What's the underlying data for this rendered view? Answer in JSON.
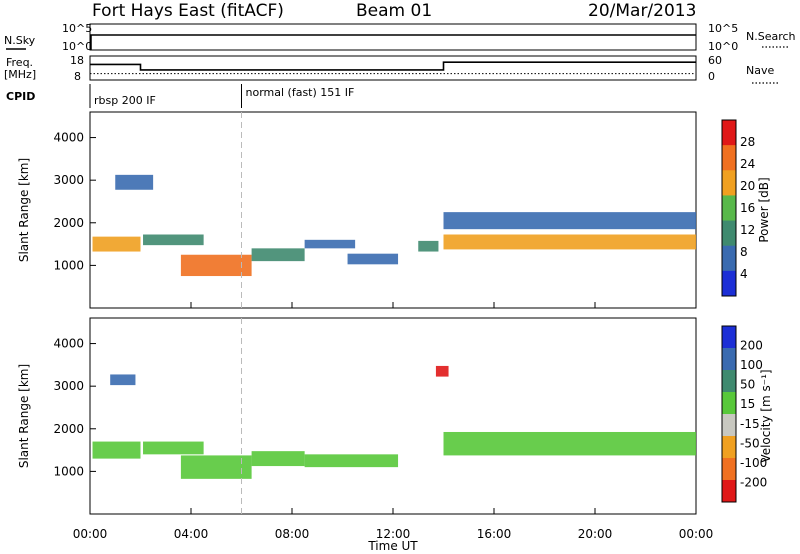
{
  "header": {
    "station": "Fort Hays East (fitACF)",
    "beam": "Beam 01",
    "date": "20/Mar/2013"
  },
  "status_panels": {
    "nsky_label": "N.Sky",
    "nsky_ticks": [
      "10^5",
      "10^0"
    ],
    "nsearch_label": "N.Search",
    "nsearch_ticks": [
      "10^5",
      "10^0"
    ],
    "freq_label": "Freq.",
    "freq_unit": "[MHz]",
    "freq_ticks": [
      "18",
      "8"
    ],
    "nave_label": "Nave",
    "nave_ticks": [
      "60",
      "0"
    ],
    "cpid_label": "CPID",
    "cpid_modes": [
      {
        "name": "rbsp 200 IF",
        "start_hour": 0
      },
      {
        "name": "normal (fast) 151 IF",
        "start_hour": 6
      }
    ],
    "freq_mhz": [
      {
        "from_hour": 0,
        "to_hour": 2,
        "value": 14.5
      },
      {
        "from_hour": 2,
        "to_hour": 14,
        "value": 12.2
      },
      {
        "from_hour": 14,
        "to_hour": 24,
        "value": 15.4
      }
    ],
    "nave_level": 16
  },
  "x_axis": {
    "label": "Time UT",
    "ticks": [
      "00:00",
      "04:00",
      "08:00",
      "12:00",
      "16:00",
      "20:00",
      "00:00"
    ],
    "range_hours": [
      0,
      24
    ]
  },
  "chart_data": [
    {
      "type": "heatmap",
      "name": "power",
      "ylabel": "Slant Range [km]",
      "yticks": [
        "1000",
        "2000",
        "3000",
        "4000"
      ],
      "ylim": [
        0,
        4600
      ],
      "colorbar_label": "Power [dB]",
      "colorbar_ticks": [
        "4",
        "8",
        "12",
        "16",
        "20",
        "24",
        "28"
      ],
      "colorbar_range": [
        0,
        32
      ],
      "colors": [
        "#1c2fd6",
        "#3a6bb0",
        "#3f8a6f",
        "#58b84a",
        "#f0a020",
        "#f07020",
        "#e01818"
      ],
      "bands": [
        {
          "t0": 0.1,
          "t1": 2.0,
          "center_km": 1500,
          "width_km": 350,
          "value": 22
        },
        {
          "t0": 1.0,
          "t1": 2.5,
          "center_km": 2950,
          "width_km": 350,
          "value": 7
        },
        {
          "t0": 2.1,
          "t1": 4.5,
          "center_km": 1600,
          "width_km": 250,
          "value": 13
        },
        {
          "t0": 3.6,
          "t1": 6.4,
          "center_km": 1000,
          "width_km": 500,
          "value": 24
        },
        {
          "t0": 6.4,
          "t1": 8.5,
          "center_km": 1250,
          "width_km": 300,
          "value": 12
        },
        {
          "t0": 8.5,
          "t1": 10.5,
          "center_km": 1500,
          "width_km": 200,
          "value": 5
        },
        {
          "t0": 10.2,
          "t1": 12.2,
          "center_km": 1150,
          "width_km": 250,
          "value": 9
        },
        {
          "t0": 13.0,
          "t1": 13.8,
          "center_km": 1450,
          "width_km": 250,
          "value": 10
        },
        {
          "t0": 14.0,
          "t1": 24.0,
          "center_km": 1550,
          "width_km": 350,
          "value": 20
        },
        {
          "t0": 14.0,
          "t1": 24.0,
          "center_km": 2050,
          "width_km": 400,
          "value": 7
        }
      ]
    },
    {
      "type": "heatmap",
      "name": "velocity",
      "ylabel": "Slant Range [km]",
      "yticks": [
        "1000",
        "2000",
        "3000",
        "4000"
      ],
      "ylim": [
        0,
        4600
      ],
      "colorbar_label": "Velocity [m s⁻¹]",
      "colorbar_ticks": [
        "200",
        "100",
        "50",
        "15",
        "-15",
        "-50",
        "-100",
        "-200"
      ],
      "colorbar_range": [
        -250,
        250
      ],
      "colors": [
        "#1c2fd6",
        "#3a6bb0",
        "#3f8a6f",
        "#58c83a",
        "#c8c8c0",
        "#f0a020",
        "#f07020",
        "#e01818"
      ],
      "bands": [
        {
          "t0": 0.1,
          "t1": 2.0,
          "center_km": 1500,
          "width_km": 400,
          "value": 0
        },
        {
          "t0": 2.1,
          "t1": 4.5,
          "center_km": 1550,
          "width_km": 300,
          "value": 0
        },
        {
          "t0": 3.6,
          "t1": 6.4,
          "center_km": 1100,
          "width_km": 550,
          "value": 30
        },
        {
          "t0": 6.4,
          "t1": 8.5,
          "center_km": 1300,
          "width_km": 350,
          "value": 30
        },
        {
          "t0": 8.5,
          "t1": 12.2,
          "center_km": 1250,
          "width_km": 300,
          "value": 0
        },
        {
          "t0": 14.0,
          "t1": 24.0,
          "center_km": 1650,
          "width_km": 550,
          "value": 0
        },
        {
          "t0": 0.8,
          "t1": 1.8,
          "center_km": 3150,
          "width_km": 250,
          "value": 150
        },
        {
          "t0": 13.7,
          "t1": 14.2,
          "center_km": 3350,
          "width_km": 250,
          "value": -220
        }
      ]
    }
  ]
}
